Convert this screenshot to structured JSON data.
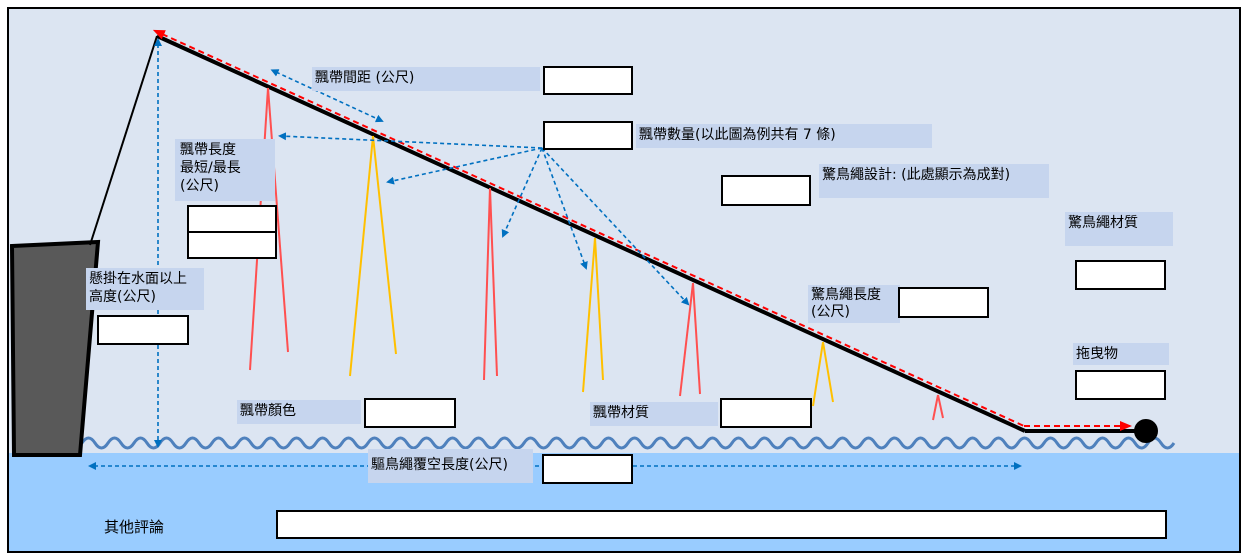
{
  "colors": {
    "sky": "#dce5f2",
    "sea": "#99ccff",
    "hull": "#595959",
    "mainline": "#000000",
    "red_line": "#ff0000",
    "streamer_red": "#ff5050",
    "streamer_yellow": "#ffc000",
    "arrow": "#0070c0",
    "wave": "#4f81bd",
    "label_bg": "#c6d5ee"
  },
  "labels": {
    "streamer_spacing": "飄帶間距 (公尺)",
    "streamer_count": "飄帶數量(以此圖為例共有 7 條)",
    "line_design": "驚鳥繩設計: (此處顯示為成對)",
    "streamer_length": "飄帶長度\n最短/最長\n(公尺)",
    "attachment_height": "懸掛在水面以上\n高度(公尺)",
    "line_material": "驚鳥繩材質",
    "line_length": "驚鳥繩長度\n(公尺)",
    "towed_object": "拖曳物",
    "streamer_color": "飄帶顏色",
    "streamer_material": "飄帶材質",
    "aerial_extent": "驅鳥繩覆空長度(公尺)",
    "other_comments": "其他評論"
  },
  "icons": {
    "hull": "vessel-stern-icon",
    "towed_buoy": "buoy-icon"
  }
}
